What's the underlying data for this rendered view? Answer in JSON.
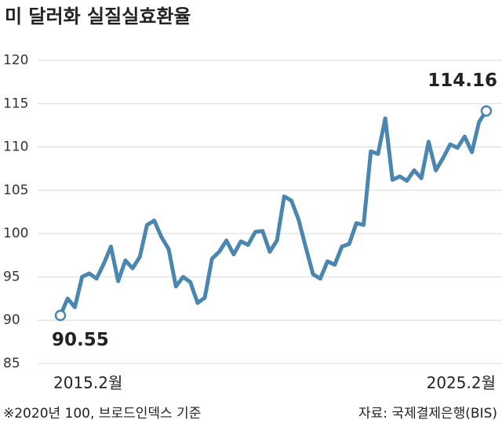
{
  "chart_data": {
    "type": "line",
    "title": "미 달러화 실질실효환율",
    "categories": [
      "2015.2월",
      null,
      null,
      null,
      null,
      null,
      null,
      null,
      null,
      null,
      null,
      null,
      null,
      null,
      null,
      null,
      null,
      null,
      null,
      null,
      null,
      null,
      null,
      null,
      null,
      null,
      null,
      null,
      null,
      null,
      null,
      null,
      null,
      null,
      null,
      null,
      null,
      null,
      null,
      null,
      null,
      null,
      null,
      null,
      null,
      null,
      null,
      null,
      null,
      null,
      null,
      null,
      null,
      null,
      null,
      null,
      null,
      null,
      null,
      "2025.2월"
    ],
    "series": [
      {
        "name": "실질실효환율",
        "color": "#4a86b0",
        "values": [
          90.55,
          92.5,
          91.5,
          95,
          95.4,
          94.8,
          96.5,
          98.5,
          94.5,
          96.9,
          96,
          97.3,
          101,
          101.5,
          99.6,
          98.2,
          93.9,
          95,
          94.4,
          92,
          92.6,
          97.1,
          97.9,
          99.2,
          97.6,
          99.1,
          98.7,
          100.2,
          100.3,
          97.9,
          99.2,
          104.3,
          103.8,
          101.6,
          98.4,
          95.3,
          94.8,
          96.8,
          96.4,
          98.5,
          98.8,
          101.2,
          101,
          109.5,
          109.2,
          113.3,
          106.2,
          106.6,
          106.1,
          107.3,
          106.4,
          110.6,
          107.3,
          108.7,
          110.3,
          109.9,
          111.2,
          109.4,
          112.9,
          114.16
        ]
      }
    ],
    "ylim": [
      85,
      120
    ],
    "yticks": [
      85,
      90,
      95,
      100,
      105,
      110,
      115,
      120
    ],
    "grid": true,
    "notes": [
      "※2020년 100, 브로드인덱스 기준",
      "자료: 국제결제은행(BIS)"
    ]
  }
}
